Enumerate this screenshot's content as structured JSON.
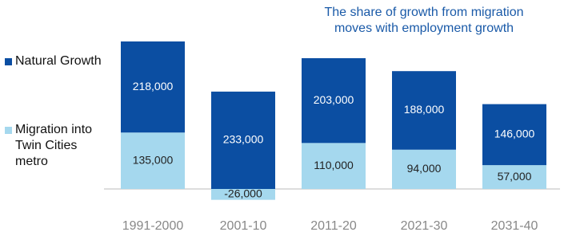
{
  "chart_data": {
    "type": "stacked-bar",
    "title": "The share of growth from migration moves with employment growth",
    "categories": [
      "1991-2000",
      "2001-10",
      "2011-20",
      "2021-30",
      "2031-40"
    ],
    "series": [
      {
        "name": "Natural Growth",
        "color": "#0b4ea2",
        "values": [
          218000,
          233000,
          203000,
          188000,
          146000
        ],
        "value_labels": [
          "218,000",
          "233,000",
          "203,000",
          "188,000",
          "146,000"
        ]
      },
      {
        "name": "Migration into Twin Cities metro",
        "color": "#a5d8ee",
        "values": [
          135000,
          -26000,
          110000,
          94000,
          57000
        ],
        "value_labels": [
          "135,000",
          "-26,000",
          "110,000",
          "94,000",
          "57,000"
        ]
      }
    ]
  }
}
